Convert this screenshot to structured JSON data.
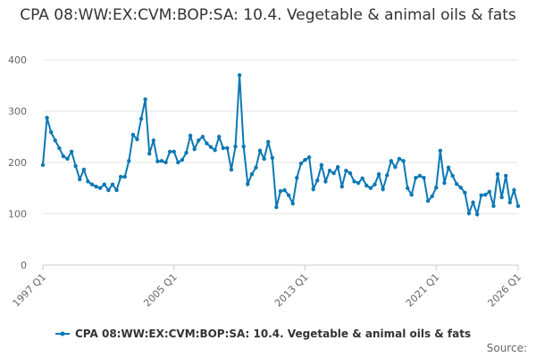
{
  "chart_data": {
    "type": "line",
    "title": "CPA 08:WW:EX:CVM:BOP:SA: 10.4. Vegetable & animal oils & fats",
    "source": "Source:",
    "categories": [
      "1997 Q1",
      null,
      null,
      null,
      null,
      null,
      null,
      null,
      null,
      null,
      null,
      null,
      null,
      null,
      null,
      null,
      null,
      null,
      null,
      null,
      null,
      null,
      null,
      null,
      null,
      null,
      null,
      null,
      null,
      null,
      null,
      null,
      "2005 Q1",
      null,
      null,
      null,
      null,
      null,
      null,
      null,
      null,
      null,
      null,
      null,
      null,
      null,
      null,
      null,
      null,
      null,
      null,
      null,
      null,
      null,
      null,
      null,
      null,
      null,
      null,
      null,
      null,
      null,
      null,
      null,
      "2013 Q1",
      null,
      null,
      null,
      null,
      null,
      null,
      null,
      null,
      null,
      null,
      null,
      null,
      null,
      null,
      null,
      null,
      null,
      null,
      null,
      null,
      null,
      null,
      null,
      null,
      null,
      null,
      null,
      null,
      null,
      null,
      null,
      "2021 Q1",
      null,
      null,
      null,
      null,
      null,
      null,
      null,
      null,
      null,
      null,
      null,
      null,
      null,
      null,
      null,
      null,
      null,
      null,
      null,
      "2026 Q1"
    ],
    "series": [
      {
        "name": "CPA 08:WW:EX:CVM:BOP:SA: 10.4. Vegetable & animal oils & fats",
        "color": "#0b78b5",
        "values": [
          195,
          287,
          259,
          243,
          228,
          212,
          207,
          221,
          193,
          167,
          186,
          163,
          157,
          153,
          150,
          157,
          146,
          157,
          146,
          172,
          172,
          203,
          254,
          245,
          285,
          323,
          217,
          243,
          202,
          203,
          200,
          221,
          221,
          200,
          205,
          219,
          252,
          226,
          243,
          250,
          237,
          230,
          224,
          250,
          228,
          228,
          186,
          231,
          370,
          231,
          158,
          177,
          190,
          223,
          207,
          240,
          209,
          113,
          144,
          146,
          136,
          120,
          170,
          198,
          205,
          210,
          148,
          165,
          195,
          163,
          184,
          179,
          191,
          153,
          184,
          179,
          163,
          160,
          169,
          155,
          150,
          157,
          177,
          148,
          175,
          203,
          191,
          207,
          203,
          150,
          137,
          170,
          174,
          170,
          125,
          134,
          151,
          223,
          160,
          190,
          174,
          158,
          151,
          141,
          101,
          122,
          99,
          136,
          137,
          143,
          115,
          177,
          132,
          174,
          122,
          146,
          115
        ]
      }
    ],
    "ylim": [
      0,
      400
    ],
    "yticks": [
      0,
      100,
      200,
      300,
      400
    ],
    "grid": true
  }
}
